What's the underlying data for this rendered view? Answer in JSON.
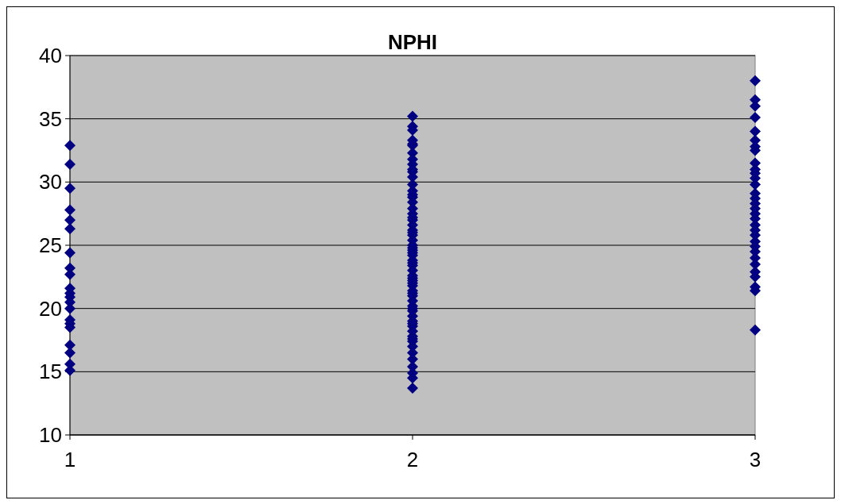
{
  "chart_data": {
    "type": "scatter",
    "title": "NPHI",
    "xlim": [
      1,
      3
    ],
    "xticks": [
      1,
      2,
      3
    ],
    "ylim": [
      10,
      40
    ],
    "yticks": [
      10,
      15,
      20,
      25,
      30,
      35,
      40
    ],
    "grid": "y",
    "marker": "diamond",
    "series": [
      {
        "color": "#000080",
        "x": [
          1,
          1,
          1,
          1,
          1,
          1,
          1,
          1,
          1,
          1,
          1,
          1,
          1,
          1,
          1,
          1,
          1,
          1,
          1,
          1,
          1
        ],
        "values": [
          32.9,
          31.4,
          29.5,
          27.8,
          27.0,
          26.3,
          24.4,
          23.2,
          22.7,
          21.6,
          21.2,
          20.9,
          20.5,
          20.0,
          19.1,
          18.8,
          18.5,
          17.1,
          16.5,
          15.6,
          15.1
        ]
      },
      {
        "color": "#000080",
        "x": [
          2,
          2,
          2,
          2,
          2,
          2,
          2,
          2,
          2,
          2,
          2,
          2,
          2,
          2,
          2,
          2,
          2,
          2,
          2,
          2,
          2,
          2,
          2,
          2,
          2,
          2,
          2,
          2,
          2,
          2,
          2,
          2,
          2,
          2,
          2,
          2,
          2,
          2,
          2,
          2,
          2,
          2,
          2,
          2,
          2,
          2,
          2,
          2,
          2,
          2,
          2,
          2,
          2,
          2,
          2,
          2,
          2,
          2,
          2,
          2,
          2,
          2
        ],
        "values": [
          35.2,
          34.4,
          34.1,
          33.3,
          32.9,
          32.3,
          31.8,
          31.4,
          30.8,
          30.4,
          29.8,
          29.3,
          28.8,
          28.4,
          27.9,
          27.5,
          27.0,
          26.6,
          26.2,
          25.8,
          25.4,
          25.0,
          24.6,
          24.2,
          23.8,
          23.4,
          23.0,
          22.6,
          22.2,
          21.8,
          21.4,
          21.0,
          20.6,
          20.2,
          19.8,
          19.4,
          19.0,
          18.6,
          18.2,
          17.8,
          17.4,
          17.0,
          16.5,
          16.0,
          15.4,
          14.9,
          14.5,
          13.7,
          33.0,
          31.0,
          29.0,
          27.2,
          26.0,
          24.8,
          23.6,
          22.4,
          21.2,
          20.0,
          18.8,
          17.6,
          24.4,
          22.0
        ]
      },
      {
        "color": "#000080",
        "x": [
          3,
          3,
          3,
          3,
          3,
          3,
          3,
          3,
          3,
          3,
          3,
          3,
          3,
          3,
          3,
          3,
          3,
          3,
          3,
          3,
          3,
          3,
          3,
          3,
          3,
          3,
          3,
          3,
          3,
          3,
          3,
          3
        ],
        "values": [
          38.0,
          36.5,
          36.0,
          35.1,
          34.0,
          33.3,
          32.8,
          32.5,
          31.5,
          31.0,
          30.7,
          30.3,
          29.8,
          29.1,
          28.7,
          28.3,
          27.9,
          27.5,
          27.1,
          26.6,
          26.2,
          25.8,
          25.3,
          24.9,
          24.5,
          24.0,
          23.5,
          22.9,
          22.5,
          21.7,
          21.4,
          18.3
        ]
      }
    ]
  }
}
